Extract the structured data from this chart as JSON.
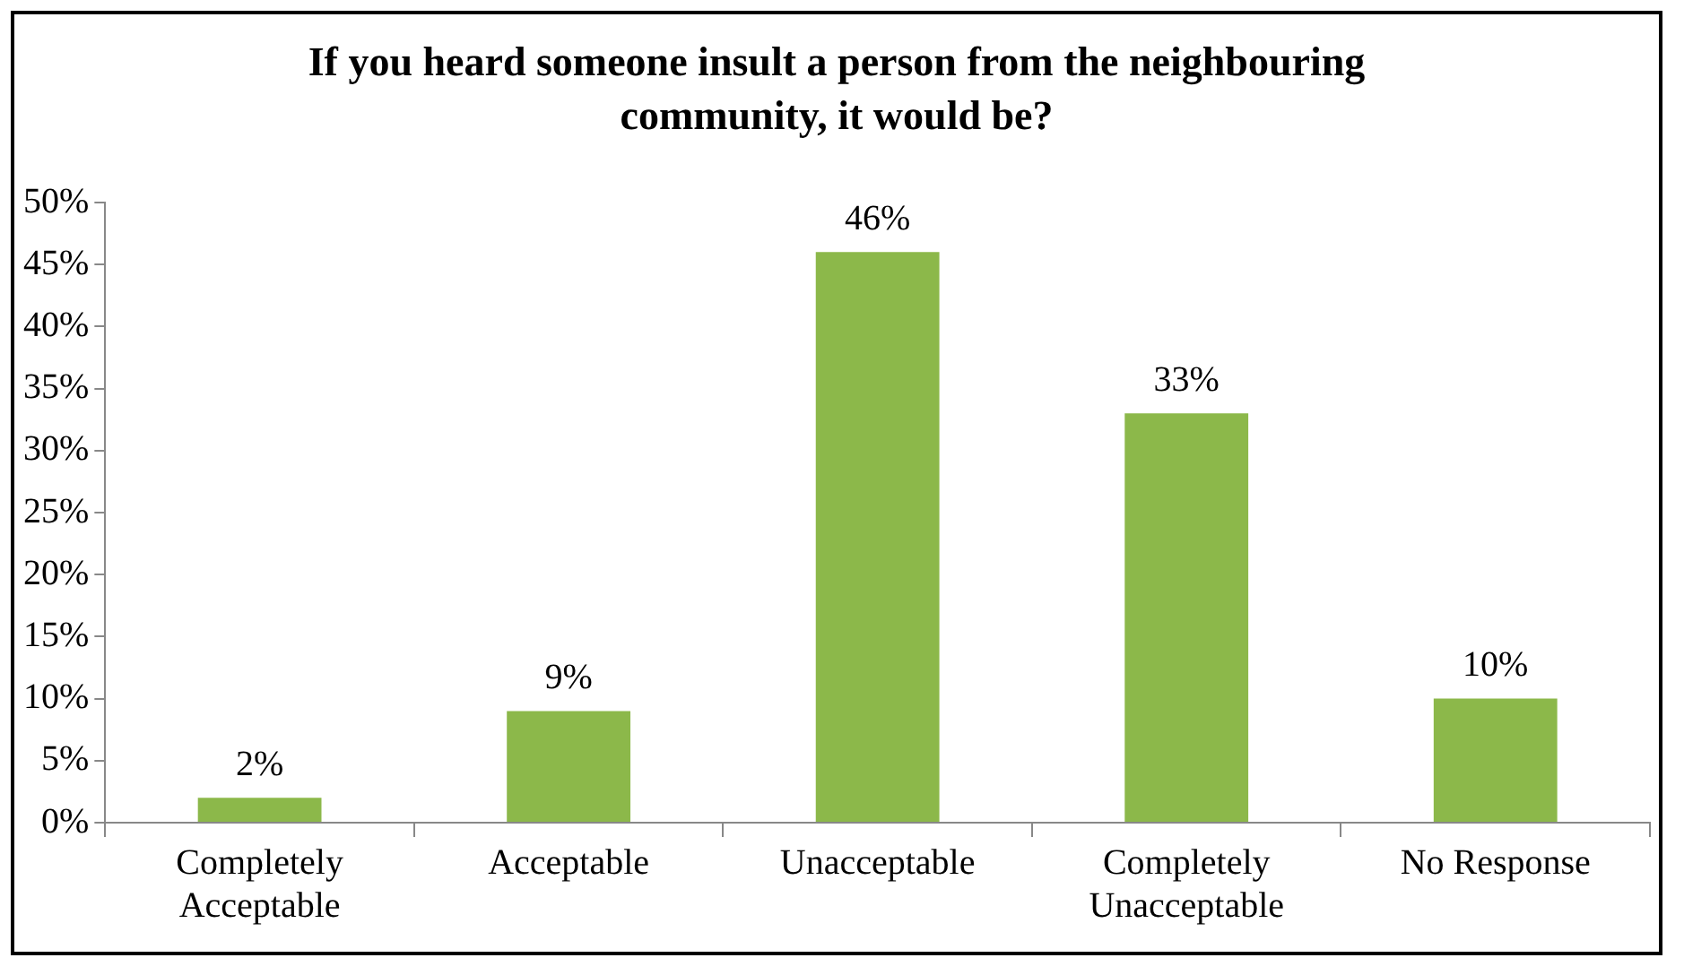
{
  "chart_data": {
    "type": "bar",
    "title": "If you heard someone insult a person from the neighbouring community, it would be?",
    "categories": [
      "Completely Acceptable",
      "Acceptable",
      "Unacceptable",
      "Completely Unacceptable",
      "No Response"
    ],
    "values": [
      2,
      9,
      46,
      33,
      10
    ],
    "value_labels": [
      "2%",
      "9%",
      "46%",
      "33%",
      "10%"
    ],
    "color": "#8cb84a",
    "ylim": [
      0,
      50
    ],
    "yticks": [
      {
        "value": 0,
        "label": "0%"
      },
      {
        "value": 5,
        "label": "5%"
      },
      {
        "value": 10,
        "label": "10%"
      },
      {
        "value": 15,
        "label": "15%"
      },
      {
        "value": 20,
        "label": "20%"
      },
      {
        "value": 25,
        "label": "25%"
      },
      {
        "value": 30,
        "label": "30%"
      },
      {
        "value": 35,
        "label": "35%"
      },
      {
        "value": 40,
        "label": "40%"
      },
      {
        "value": 45,
        "label": "45%"
      },
      {
        "value": 50,
        "label": "50%"
      }
    ],
    "grid": false,
    "legend": false
  }
}
